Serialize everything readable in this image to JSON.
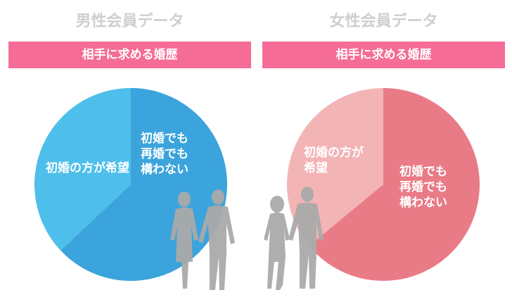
{
  "chart_data": [
    {
      "type": "pie",
      "title": "男性会員データ",
      "subtitle": "相手に求める婚歴",
      "categories": [
        "初婚の方が希望",
        "初婚でも\n再婚でも\n構わない"
      ],
      "values": [
        37,
        63
      ],
      "colors": [
        "#4dbfea",
        "#3ca4dc"
      ]
    },
    {
      "type": "pie",
      "title": "女性会員データ",
      "subtitle": "相手に求める婚歴",
      "categories": [
        "初婚の方が\n希望",
        "初婚でも\n再婚でも\n構わない"
      ],
      "values": [
        36,
        64
      ],
      "colors": [
        "#f3b4b6",
        "#e97b87"
      ]
    }
  ]
}
